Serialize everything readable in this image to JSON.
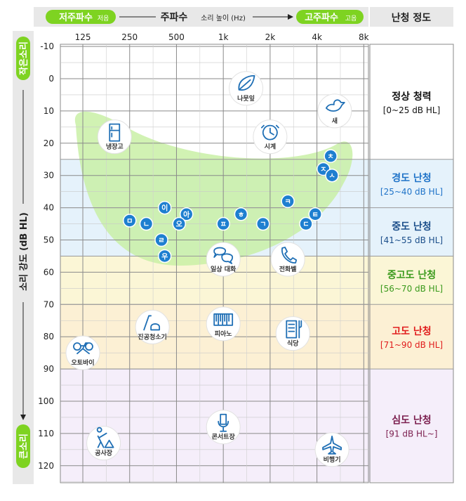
{
  "header": {
    "low_freq": "저주파수",
    "low_freq_note": "저음",
    "freq_title": "주파수",
    "freq_title_note": "소리 높이 (Hz)",
    "high_freq": "고주파수",
    "high_freq_note": "고음",
    "degree_title": "난청 정도"
  },
  "side": {
    "top_label": "작은소리",
    "axis_title": "소리 강도 (dB HL)",
    "bottom_label": "큰소리"
  },
  "colors": {
    "green": "#7ed321",
    "green_dark": "#56b810",
    "blue_badge": "#1e7fd0",
    "normal_bg": "#ffffff",
    "mild_bg": "#e5f2fb",
    "moderate_bg": "#e5f2fb",
    "mod_severe_bg": "#fbf6d6",
    "severe_bg": "#fcf0d4",
    "profound_bg": "#f5eefa",
    "speech_banana": "#c9f0a6"
  },
  "chart_data": {
    "type": "scatter",
    "x_ticks": [
      "125",
      "250",
      "500",
      "1k",
      "2k",
      "4k",
      "8k"
    ],
    "y_ticks": [
      -10,
      0,
      10,
      20,
      30,
      40,
      50,
      60,
      70,
      80,
      90,
      100,
      110,
      120
    ],
    "ylim": [
      -10,
      125
    ],
    "y_inverted": true,
    "x_scale": "log2",
    "grid": true,
    "levels": [
      {
        "name": "정상 청력",
        "range": "[0~25 dB HL]",
        "from": -15,
        "to": 25,
        "color": "#111111"
      },
      {
        "name": "경도 난청",
        "range": "[25~40 dB HL]",
        "from": 25,
        "to": 40,
        "color": "#1f73c8"
      },
      {
        "name": "중도 난청",
        "range": "[41~55 dB HL]",
        "from": 40,
        "to": 55,
        "color": "#1b4e8a"
      },
      {
        "name": "중고도 난청",
        "range": "[56~70 dB HL]",
        "from": 55,
        "to": 70,
        "color": "#3a9a1c"
      },
      {
        "name": "고도 난청",
        "range": "[71~90 dB HL]",
        "from": 70,
        "to": 90,
        "color": "#e11c1c"
      },
      {
        "name": "심도 난청",
        "range": "[91 dB HL~]",
        "from": 90,
        "to": 125,
        "color": "#7b1e4e"
      }
    ],
    "sounds": [
      {
        "label": "나뭇잎",
        "icon": "leaf-icon",
        "freq": 1400,
        "db": 3
      },
      {
        "label": "새",
        "icon": "bird-icon",
        "freq": 5200,
        "db": 10
      },
      {
        "label": "냉장고",
        "icon": "fridge-icon",
        "freq": 200,
        "db": 18
      },
      {
        "label": "시계",
        "icon": "clock-icon",
        "freq": 2000,
        "db": 18
      },
      {
        "label": "일상 대화",
        "icon": "speech-bubbles-icon",
        "freq": 1000,
        "db": 56
      },
      {
        "label": "전화벨",
        "icon": "phone-icon",
        "freq": 2600,
        "db": 56
      },
      {
        "label": "진공청소기",
        "icon": "vacuum-icon",
        "freq": 350,
        "db": 77
      },
      {
        "label": "피아노",
        "icon": "piano-icon",
        "freq": 1000,
        "db": 76
      },
      {
        "label": "식당",
        "icon": "restaurant-icon",
        "freq": 2800,
        "db": 79
      },
      {
        "label": "오토바이",
        "icon": "motorcycle-icon",
        "freq": 125,
        "db": 85
      },
      {
        "label": "공사장",
        "icon": "construction-icon",
        "freq": 170,
        "db": 113
      },
      {
        "label": "콘서트장",
        "icon": "microphone-icon",
        "freq": 1000,
        "db": 108
      },
      {
        "label": "비행기",
        "icon": "airplane-icon",
        "freq": 5000,
        "db": 115
      }
    ],
    "phonemes": [
      {
        "text": "ㅁ",
        "freq": 250,
        "db": 44
      },
      {
        "text": "ㄴ",
        "freq": 320,
        "db": 45
      },
      {
        "text": "이",
        "freq": 420,
        "db": 40
      },
      {
        "text": "아",
        "freq": 580,
        "db": 42
      },
      {
        "text": "오",
        "freq": 520,
        "db": 45
      },
      {
        "text": "ㄹ",
        "freq": 400,
        "db": 50
      },
      {
        "text": "우",
        "freq": 420,
        "db": 55
      },
      {
        "text": "ㅍ",
        "freq": 1000,
        "db": 45
      },
      {
        "text": "ㅎ",
        "freq": 1300,
        "db": 42
      },
      {
        "text": "ㄱ",
        "freq": 1800,
        "db": 45
      },
      {
        "text": "ㅋ",
        "freq": 2600,
        "db": 38
      },
      {
        "text": "ㄷ",
        "freq": 3400,
        "db": 45
      },
      {
        "text": "ㅌ",
        "freq": 3900,
        "db": 42
      },
      {
        "text": "ㅊ",
        "freq": 4900,
        "db": 24
      },
      {
        "text": "ㅈ",
        "freq": 4400,
        "db": 28
      },
      {
        "text": "ㅅ",
        "freq": 5000,
        "db": 30
      }
    ]
  }
}
